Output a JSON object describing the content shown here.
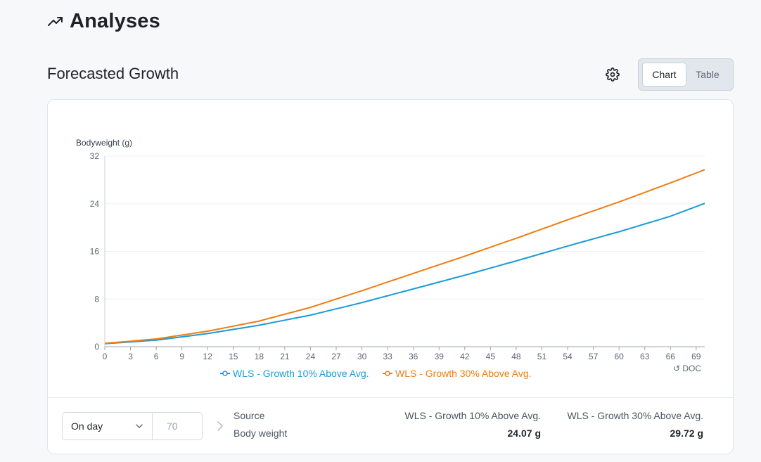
{
  "page": {
    "title": "Analyses",
    "title_icon": "trending-up-icon"
  },
  "section": {
    "title": "Forecasted Growth"
  },
  "toolbar": {
    "settings_icon": "gear-icon"
  },
  "view_toggle": {
    "chart_label": "Chart",
    "table_label": "Table",
    "selected": "Chart"
  },
  "chart_data": {
    "type": "line",
    "ylabel": "Bodyweight (g)",
    "xlabel": "↺ DOC",
    "ylim": [
      0,
      32
    ],
    "xlim": [
      0,
      70
    ],
    "y_ticks": [
      0,
      8,
      16,
      24,
      32
    ],
    "x_ticks": [
      0,
      3,
      6,
      9,
      12,
      15,
      18,
      21,
      24,
      27,
      30,
      33,
      36,
      39,
      42,
      45,
      48,
      51,
      54,
      57,
      60,
      63,
      66,
      69
    ],
    "grid": true,
    "legend_position": "bottom-center",
    "series": [
      {
        "name": "WLS - Growth 10% Above Avg.",
        "color": "#1a9bd7",
        "x": [
          0,
          6,
          12,
          18,
          24,
          30,
          36,
          42,
          48,
          54,
          60,
          66,
          70
        ],
        "values": [
          0.5,
          1.1,
          2.2,
          3.6,
          5.3,
          7.4,
          9.7,
          12.0,
          14.4,
          16.9,
          19.3,
          21.9,
          24.07
        ]
      },
      {
        "name": "WLS - Growth 30% Above Avg.",
        "color": "#ee7d12",
        "x": [
          0,
          6,
          12,
          18,
          24,
          30,
          36,
          42,
          48,
          54,
          60,
          66,
          70
        ],
        "values": [
          0.55,
          1.3,
          2.6,
          4.3,
          6.6,
          9.4,
          12.3,
          15.2,
          18.2,
          21.3,
          24.3,
          27.5,
          29.72
        ]
      }
    ]
  },
  "footer": {
    "day_select_value": "On day",
    "day_input_value": "70",
    "source_label": "Source",
    "metric_label": "Body weight",
    "columns": [
      {
        "header": "WLS - Growth 10% Above Avg.",
        "value": "24.07 g"
      },
      {
        "header": "WLS - Growth 30% Above Avg.",
        "value": "29.72 g"
      }
    ]
  }
}
